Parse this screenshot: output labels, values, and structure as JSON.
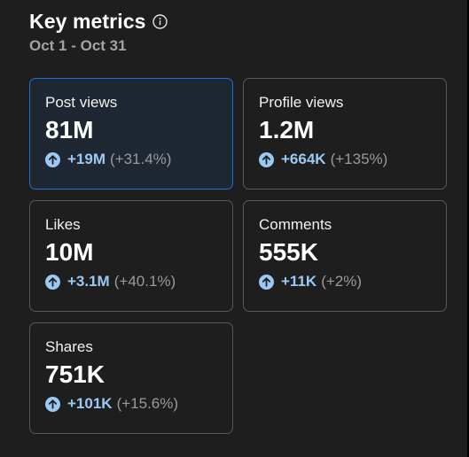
{
  "header": {
    "title": "Key metrics",
    "date_range": "Oct 1 - Oct 31"
  },
  "colors": {
    "background": "#1e1e1e",
    "card_border": "#575757",
    "selected_border": "#1b6fd8",
    "delta_blue": "#9cc9f3",
    "muted_text": "#a3a3a3"
  },
  "icons": {
    "info": "info-circle-icon",
    "trend": "arrow-up-circle-icon"
  },
  "metrics": [
    {
      "label": "Post views",
      "value": "81M",
      "delta": "+19M",
      "percent": "(+31.4%)",
      "selected": true
    },
    {
      "label": "Profile views",
      "value": "1.2M",
      "delta": "+664K",
      "percent": "(+135%)",
      "selected": false
    },
    {
      "label": "Likes",
      "value": "10M",
      "delta": "+3.1M",
      "percent": "(+40.1%)",
      "selected": false
    },
    {
      "label": "Comments",
      "value": "555K",
      "delta": "+11K",
      "percent": "(+2%)",
      "selected": false
    },
    {
      "label": "Shares",
      "value": "751K",
      "delta": "+101K",
      "percent": "(+15.6%)",
      "selected": false
    }
  ]
}
